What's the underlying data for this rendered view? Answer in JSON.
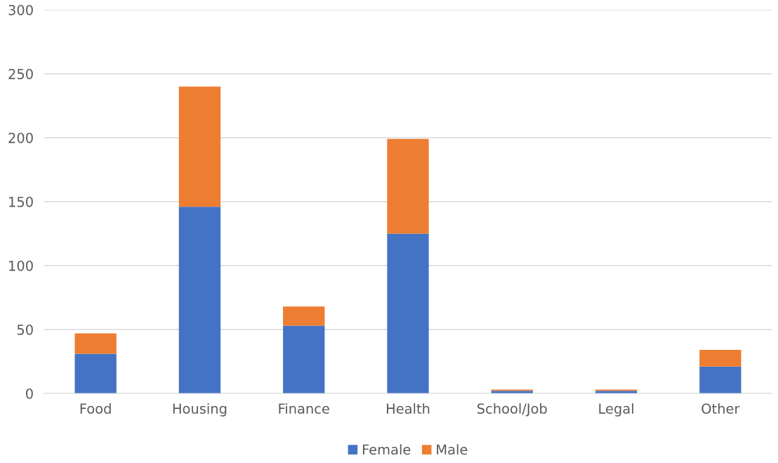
{
  "chart_data": {
    "type": "bar",
    "stacked": true,
    "categories": [
      "Food",
      "Housing",
      "Finance",
      "Health",
      "School/Job",
      "Legal",
      "Other"
    ],
    "series": [
      {
        "name": "Female",
        "color": "#4472c4",
        "values": [
          31,
          146,
          53,
          125,
          2,
          2,
          21
        ]
      },
      {
        "name": "Male",
        "color": "#ed7d31",
        "values": [
          16,
          94,
          15,
          74,
          1,
          1,
          13
        ]
      }
    ],
    "ylim": [
      0,
      300
    ],
    "yticks": [
      0,
      50,
      100,
      150,
      200,
      250,
      300
    ],
    "grid": "y",
    "legend": "bottom"
  }
}
